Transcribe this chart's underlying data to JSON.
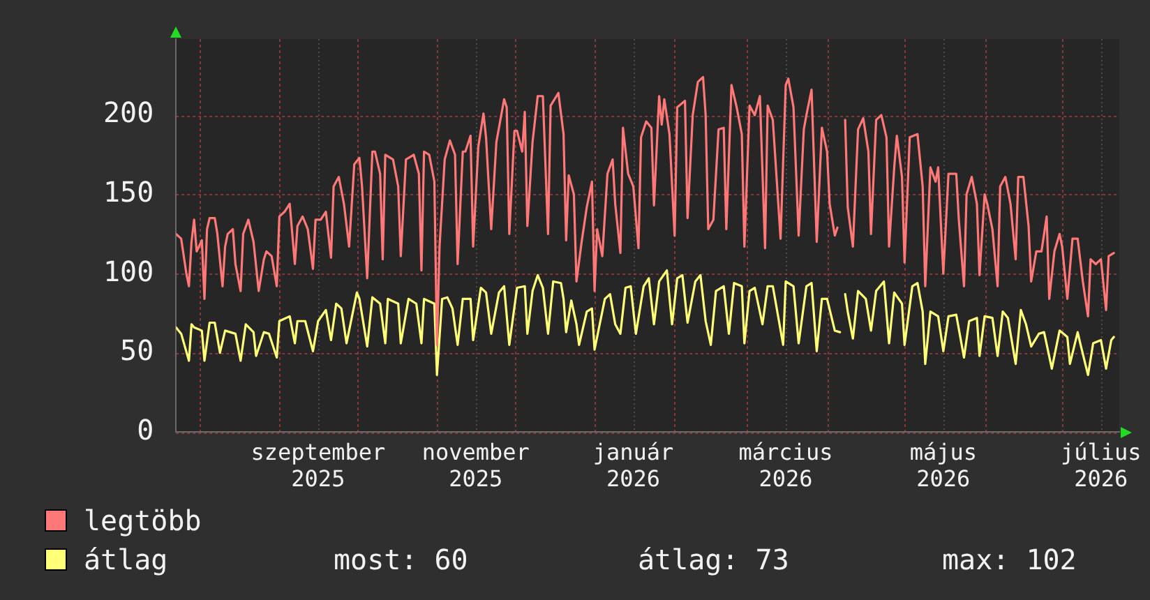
{
  "chart_data": {
    "type": "line",
    "xlim": [
      "2025-07-23",
      "2026-07-23"
    ],
    "xticks": [
      {
        "value": "2025-08-01",
        "label": null
      },
      {
        "value": "2025-09-01",
        "label": null
      },
      {
        "value": "2025-09-16",
        "label": "szeptember 2025"
      },
      {
        "value": "2025-10-01",
        "label": null
      },
      {
        "value": "2025-11-01",
        "label": null
      },
      {
        "value": "2025-11-16",
        "label": "november 2025"
      },
      {
        "value": "2025-12-01",
        "label": null
      },
      {
        "value": "2026-01-01",
        "label": null
      },
      {
        "value": "2026-01-16",
        "label": "január 2026"
      },
      {
        "value": "2026-02-01",
        "label": null
      },
      {
        "value": "2026-03-01",
        "label": null
      },
      {
        "value": "2026-03-16",
        "label": "március 2026"
      },
      {
        "value": "2026-04-01",
        "label": null
      },
      {
        "value": "2026-05-01",
        "label": null
      },
      {
        "value": "2026-05-16",
        "label": "május 2026"
      },
      {
        "value": "2026-06-01",
        "label": null
      },
      {
        "value": "2026-07-01",
        "label": null
      },
      {
        "value": "2026-07-16",
        "label": "július 2026"
      }
    ],
    "ylim": [
      0,
      248
    ],
    "yticks": [
      0,
      50,
      100,
      150,
      200
    ],
    "grid": true,
    "legend": "bottom left",
    "annotations": [
      "most: 60",
      "átlag: 73",
      "max: 102"
    ],
    "series": [
      {
        "name": "legtöbb",
        "color": "#ff7878",
        "x": [
          "2025-07-23",
          "2025-07-25",
          "2025-07-27",
          "2025-07-28",
          "2025-07-29",
          "2025-07-30",
          "2025-07-31",
          "2025-08-02",
          "2025-08-03",
          "2025-08-04",
          "2025-08-05",
          "2025-08-07",
          "2025-08-08",
          "2025-08-10",
          "2025-08-11",
          "2025-08-12",
          "2025-08-14",
          "2025-08-15",
          "2025-08-17",
          "2025-08-18",
          "2025-08-20",
          "2025-08-22",
          "2025-08-24",
          "2025-08-26",
          "2025-08-27",
          "2025-08-29",
          "2025-08-31",
          "2025-09-01",
          "2025-09-03",
          "2025-09-05",
          "2025-09-07",
          "2025-09-08",
          "2025-09-10",
          "2025-09-12",
          "2025-09-14",
          "2025-09-15",
          "2025-09-17",
          "2025-09-19",
          "2025-09-21",
          "2025-09-22",
          "2025-09-24",
          "2025-09-26",
          "2025-09-28",
          "2025-09-30",
          "2025-10-02",
          "2025-10-03",
          "2025-10-05",
          "2025-10-07",
          "2025-10-08",
          "2025-10-10",
          "2025-10-11",
          "2025-10-12",
          "2025-10-15",
          "2025-10-17",
          "2025-10-18",
          "2025-10-20",
          "2025-10-23",
          "2025-10-25",
          "2025-10-26",
          "2025-10-27",
          "2025-10-29",
          "2025-10-31",
          "2025-11-01",
          "2025-11-02",
          "2025-11-04",
          "2025-11-06",
          "2025-11-08",
          "2025-11-09",
          "2025-11-11",
          "2025-11-12",
          "2025-11-14",
          "2025-11-15",
          "2025-11-17",
          "2025-11-19",
          "2025-11-20",
          "2025-11-22",
          "2025-11-24",
          "2025-11-27",
          "2025-11-28",
          "2025-11-29",
          "2025-12-01",
          "2025-12-02",
          "2025-12-04",
          "2025-12-05",
          "2025-12-06",
          "2025-12-08",
          "2025-12-10",
          "2025-12-12",
          "2025-12-14",
          "2025-12-15",
          "2025-12-18",
          "2025-12-20",
          "2025-12-21",
          "2025-12-22",
          "2025-12-24",
          "2025-12-25",
          "2025-12-27",
          "2025-12-29",
          "2025-12-31",
          "2026-01-01",
          "2026-01-02",
          "2026-01-04",
          "2026-01-06",
          "2026-01-08",
          "2026-01-09",
          "2026-01-11",
          "2026-01-12",
          "2026-01-14",
          "2026-01-16",
          "2026-01-18",
          "2026-01-19",
          "2026-01-21",
          "2026-01-23",
          "2026-01-24",
          "2026-01-26",
          "2026-01-27",
          "2026-01-28",
          "2026-01-30",
          "2026-02-01",
          "2026-02-02",
          "2026-02-05",
          "2026-02-06",
          "2026-02-08",
          "2026-02-10",
          "2026-02-12",
          "2026-02-13",
          "2026-02-14",
          "2026-02-16",
          "2026-02-18",
          "2026-02-20",
          "2026-02-21",
          "2026-02-23",
          "2026-02-25",
          "2026-02-27",
          "2026-02-28",
          "2026-03-02",
          "2026-03-04",
          "2026-03-06",
          "2026-03-08",
          "2026-03-09",
          "2026-03-11",
          "2026-03-14",
          "2026-03-16",
          "2026-03-17",
          "2026-03-19",
          "2026-03-21",
          "2026-03-23",
          "2026-03-24",
          "2026-03-26",
          "2026-03-28",
          "2026-03-30",
          "2026-04-01",
          "2026-04-02",
          "2026-04-04",
          "2026-04-05",
          "2026-04-07",
          "2026-04-08",
          "2026-04-09",
          "2026-04-11",
          "2026-04-13",
          "2026-04-15",
          "2026-04-17",
          "2026-04-18",
          "2026-04-20",
          "2026-04-22",
          "2026-04-24",
          "2026-04-25",
          "2026-04-27",
          "2026-04-28",
          "2026-04-30",
          "2026-05-01",
          "2026-05-03",
          "2026-05-06",
          "2026-05-08",
          "2026-05-09",
          "2026-05-11",
          "2026-05-13",
          "2026-05-14",
          "2026-05-16",
          "2026-05-18",
          "2026-05-21",
          "2026-05-22",
          "2026-05-24",
          "2026-05-25",
          "2026-05-27",
          "2026-05-29",
          "2026-05-30",
          "2026-06-01",
          "2026-06-02",
          "2026-06-04",
          "2026-06-06",
          "2026-06-07",
          "2026-06-09",
          "2026-06-11",
          "2026-06-13",
          "2026-06-14",
          "2026-06-16",
          "2026-06-18",
          "2026-06-19",
          "2026-06-21",
          "2026-06-23",
          "2026-06-25",
          "2026-06-26",
          "2026-06-28",
          "2026-06-30",
          "2026-07-01",
          "2026-07-03",
          "2026-07-05",
          "2026-07-07",
          "2026-07-09",
          "2026-07-11",
          "2026-07-12",
          "2026-07-14",
          "2026-07-16",
          "2026-07-18",
          "2026-07-19",
          "2026-07-21"
        ],
        "values": [
          125,
          122,
          100,
          92,
          120,
          134,
          114,
          121,
          84,
          128,
          135,
          135,
          125,
          92,
          117,
          125,
          128,
          106,
          89,
          125,
          134,
          120,
          89,
          109,
          114,
          111,
          92,
          136,
          139,
          144,
          106,
          130,
          136,
          128,
          103,
          134,
          134,
          139,
          110,
          155,
          161,
          144,
          117,
          169,
          173,
          155,
          97,
          177,
          177,
          163,
          109,
          175,
          172,
          155,
          111,
          172,
          175,
          163,
          102,
          177,
          175,
          158,
          55,
          117,
          172,
          184,
          175,
          106,
          177,
          177,
          187,
          117,
          180,
          201,
          186,
          128,
          183,
          210,
          205,
          125,
          190,
          190,
          177,
          202,
          130,
          183,
          212,
          212,
          125,
          206,
          214,
          188,
          121,
          162,
          150,
          95,
          120,
          142,
          158,
          89,
          128,
          111,
          163,
          172,
          144,
          113,
          192,
          163,
          155,
          116,
          186,
          196,
          192,
          143,
          212,
          194,
          210,
          188,
          124,
          205,
          209,
          135,
          200,
          221,
          224,
          200,
          128,
          134,
          191,
          192,
          128,
          219,
          205,
          188,
          117,
          206,
          200,
          212,
          116,
          206,
          197,
          122,
          219,
          223,
          205,
          124,
          191,
          200,
          216,
          120,
          192,
          177,
          144,
          124,
          129,
          null,
          197,
          142,
          117,
          191,
          198,
          177,
          125,
          197,
          200,
          186,
          117,
          167,
          187,
          161,
          107,
          186,
          188,
          155,
          92,
          167,
          158,
          167,
          100,
          163,
          163,
          134,
          92,
          150,
          161,
          144,
          99,
          150,
          144,
          128,
          92,
          155,
          161,
          144,
          109,
          161,
          161,
          130,
          95,
          114,
          114,
          136,
          84,
          114,
          125,
          117,
          84,
          122,
          122,
          95,
          73,
          109,
          106,
          109,
          77,
          111,
          113
        ]
      },
      {
        "name": "átlag",
        "color": "#ffff78",
        "x": [
          "2025-07-23",
          "2025-07-25",
          "2025-07-28",
          "2025-07-29",
          "2025-07-30",
          "2025-08-02",
          "2025-08-03",
          "2025-08-05",
          "2025-08-07",
          "2025-08-09",
          "2025-08-11",
          "2025-08-13",
          "2025-08-15",
          "2025-08-17",
          "2025-08-19",
          "2025-08-22",
          "2025-08-23",
          "2025-08-26",
          "2025-08-28",
          "2025-08-31",
          "2025-09-01",
          "2025-09-05",
          "2025-09-07",
          "2025-09-08",
          "2025-09-11",
          "2025-09-14",
          "2025-09-16",
          "2025-09-19",
          "2025-09-21",
          "2025-09-23",
          "2025-09-25",
          "2025-09-27",
          "2025-10-01",
          "2025-10-02",
          "2025-10-05",
          "2025-10-07",
          "2025-10-10",
          "2025-10-12",
          "2025-10-13",
          "2025-10-17",
          "2025-10-18",
          "2025-10-21",
          "2025-10-24",
          "2025-10-26",
          "2025-10-27",
          "2025-10-31",
          "2025-11-01",
          "2025-11-03",
          "2025-11-05",
          "2025-11-07",
          "2025-11-09",
          "2025-11-11",
          "2025-11-14",
          "2025-11-15",
          "2025-11-18",
          "2025-11-20",
          "2025-11-22",
          "2025-11-25",
          "2025-11-27",
          "2025-11-29",
          "2025-12-02",
          "2025-12-05",
          "2025-12-06",
          "2025-12-08",
          "2025-12-10",
          "2025-12-12",
          "2025-12-14",
          "2025-12-16",
          "2025-12-19",
          "2025-12-20",
          "2025-12-21",
          "2025-12-23",
          "2025-12-25",
          "2025-12-26",
          "2025-12-29",
          "2025-12-31",
          "2026-01-01",
          "2026-01-03",
          "2026-01-05",
          "2026-01-07",
          "2026-01-09",
          "2026-01-11",
          "2026-01-13",
          "2026-01-15",
          "2026-01-17",
          "2026-01-20",
          "2026-01-22",
          "2026-01-24",
          "2026-01-26",
          "2026-01-29",
          "2026-01-31",
          "2026-02-02",
          "2026-02-04",
          "2026-02-06",
          "2026-02-09",
          "2026-02-11",
          "2026-02-13",
          "2026-02-15",
          "2026-02-17",
          "2026-02-20",
          "2026-02-22",
          "2026-02-24",
          "2026-02-27",
          "2026-02-28",
          "2026-03-02",
          "2026-03-04",
          "2026-03-07",
          "2026-03-09",
          "2026-03-11",
          "2026-03-15",
          "2026-03-16",
          "2026-03-19",
          "2026-03-21",
          "2026-03-24",
          "2026-03-26",
          "2026-03-28",
          "2026-03-30",
          "2026-04-01",
          "2026-04-04",
          "2026-04-06",
          "2026-04-07",
          "2026-04-08",
          "2026-04-09",
          "2026-04-11",
          "2026-04-13",
          "2026-04-16",
          "2026-04-18",
          "2026-04-20",
          "2026-04-23",
          "2026-04-25",
          "2026-04-27",
          "2026-04-30",
          "2026-05-01",
          "2026-05-04",
          "2026-05-06",
          "2026-05-08",
          "2026-05-09",
          "2026-05-11",
          "2026-05-14",
          "2026-05-16",
          "2026-05-18",
          "2026-05-21",
          "2026-05-24",
          "2026-05-26",
          "2026-05-29",
          "2026-05-30",
          "2026-06-01",
          "2026-06-04",
          "2026-06-06",
          "2026-06-08",
          "2026-06-10",
          "2026-06-13",
          "2026-06-15",
          "2026-06-17",
          "2026-06-19",
          "2026-06-22",
          "2026-06-24",
          "2026-06-27",
          "2026-06-30",
          "2026-07-03",
          "2026-07-04",
          "2026-07-07",
          "2026-07-08",
          "2026-07-11",
          "2026-07-13",
          "2026-07-16",
          "2026-07-18",
          "2026-07-20",
          "2026-07-21"
        ],
        "values": [
          66,
          62,
          45,
          68,
          66,
          64,
          45,
          69,
          69,
          50,
          64,
          63,
          62,
          45,
          68,
          63,
          48,
          63,
          62,
          47,
          70,
          73,
          56,
          70,
          70,
          51,
          70,
          77,
          58,
          81,
          78,
          56,
          88,
          84,
          54,
          85,
          81,
          56,
          84,
          81,
          56,
          84,
          81,
          56,
          84,
          81,
          36,
          84,
          85,
          78,
          55,
          84,
          84,
          58,
          91,
          88,
          62,
          88,
          92,
          55,
          91,
          92,
          62,
          89,
          99,
          91,
          62,
          95,
          94,
          84,
          63,
          83,
          68,
          55,
          76,
          78,
          52,
          68,
          84,
          87,
          68,
          62,
          91,
          92,
          62,
          92,
          97,
          68,
          95,
          102,
          68,
          97,
          99,
          69,
          95,
          99,
          70,
          55,
          89,
          92,
          62,
          94,
          92,
          56,
          89,
          91,
          68,
          92,
          92,
          55,
          95,
          92,
          56,
          92,
          94,
          51,
          84,
          84,
          64,
          63,
          null,
          87,
          76,
          59,
          89,
          84,
          64,
          89,
          95,
          56,
          88,
          81,
          55,
          92,
          94,
          76,
          43,
          76,
          73,
          51,
          73,
          74,
          47,
          70,
          72,
          48,
          73,
          72,
          48,
          76,
          72,
          43,
          77,
          68,
          54,
          62,
          63,
          40,
          64,
          60,
          43,
          63,
          56,
          36,
          56,
          58,
          40,
          58,
          60
        ]
      }
    ]
  }
}
